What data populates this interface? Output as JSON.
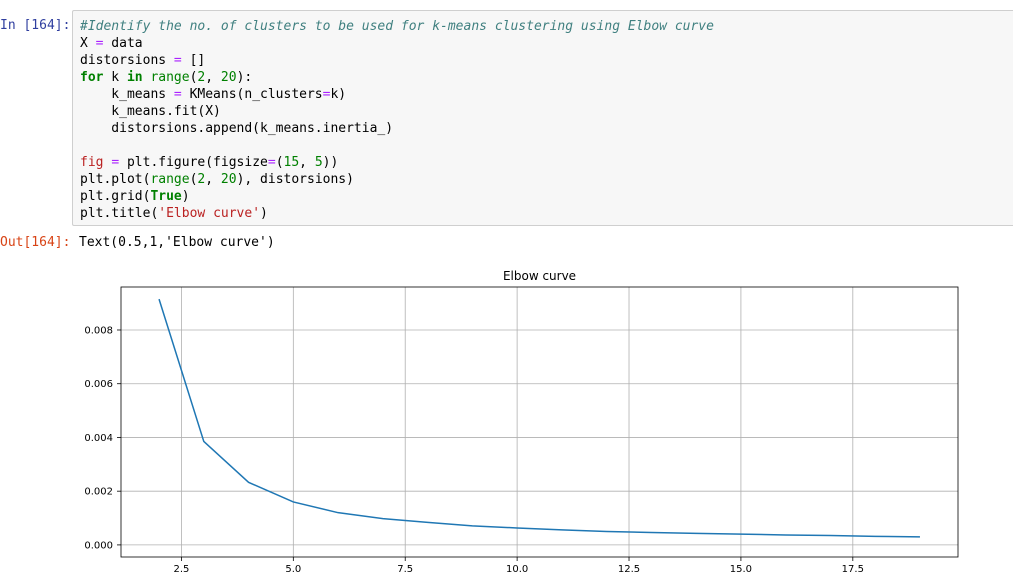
{
  "notebook": {
    "in_prompt": "In [164]:",
    "out_prompt": "Out[164]:",
    "output_text": "Text(0.5,1,'Elbow curve')"
  },
  "code": {
    "line1": "#Identify the no. of clusters to be used for k-means clustering using Elbow curve",
    "line2_a": "X ",
    "line2_b": "=",
    "line2_c": " data",
    "line3_a": "distorsions ",
    "line3_b": "=",
    "line3_c": " []",
    "line4_kw1": "for",
    "line4_a": " k ",
    "line4_kw2": "in",
    "line4_b": " ",
    "line4_fn": "range",
    "line4_c": "(",
    "line4_n1": "2",
    "line4_d": ", ",
    "line4_n2": "20",
    "line4_e": "):",
    "line5_a": "    k_means ",
    "line5_b": "=",
    "line5_c": " KMeans(n_clusters",
    "line5_d": "=",
    "line5_e": "k)",
    "line6": "    k_means.fit(X)",
    "line7": "    distorsions.append(k_means.inertia_)",
    "line9_var": "fig",
    "line9_a": " ",
    "line9_b": "=",
    "line9_c": " plt.figure(figsize",
    "line9_d": "=",
    "line9_e": "(",
    "line9_n1": "15",
    "line9_f": ", ",
    "line9_n2": "5",
    "line9_g": "))",
    "line10_a": "plt.plot(",
    "line10_fn": "range",
    "line10_b": "(",
    "line10_n1": "2",
    "line10_c": ", ",
    "line10_n2": "20",
    "line10_d": "), distorsions)",
    "line11_a": "plt.grid(",
    "line11_kw": "True",
    "line11_b": ")",
    "line12_a": "plt.title(",
    "line12_s": "'Elbow curve'",
    "line12_b": ")"
  },
  "chart_data": {
    "type": "line",
    "title": "Elbow curve",
    "xlabel": "",
    "ylabel": "",
    "x": [
      2,
      3,
      4,
      5,
      6,
      7,
      8,
      9,
      10,
      11,
      12,
      13,
      14,
      15,
      16,
      17,
      18,
      19
    ],
    "series": [
      {
        "values": [
          0.00915,
          0.00385,
          0.00233,
          0.0016,
          0.0012,
          0.00098,
          0.00084,
          0.00071,
          0.00063,
          0.00056,
          0.0005,
          0.00046,
          0.00043,
          0.0004,
          0.00037,
          0.00035,
          0.00032,
          0.0003
        ],
        "color": "#1f77b4"
      }
    ],
    "xlim": [
      1.15,
      19.85
    ],
    "ylim": [
      -0.00045,
      0.0096
    ],
    "xticks": [
      "2.5",
      "5.0",
      "7.5",
      "10.0",
      "12.5",
      "15.0",
      "17.5"
    ],
    "xtick_values": [
      2.5,
      5.0,
      7.5,
      10.0,
      12.5,
      15.0,
      17.5
    ],
    "yticks": [
      "0.000",
      "0.002",
      "0.004",
      "0.006",
      "0.008"
    ],
    "ytick_values": [
      0.0,
      0.002,
      0.004,
      0.006,
      0.008
    ],
    "grid": true
  }
}
